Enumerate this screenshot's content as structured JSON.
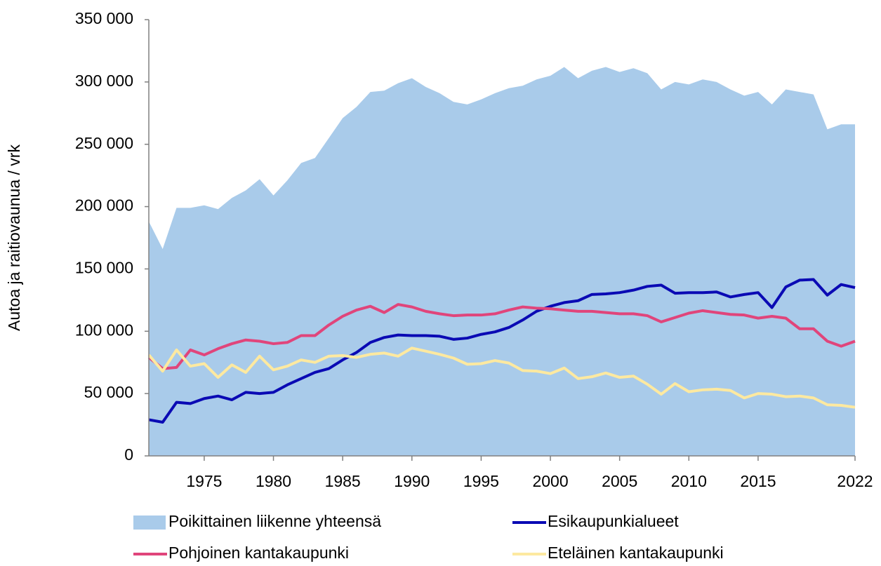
{
  "chart_data": {
    "type": "line",
    "ylabel": "Autoa ja raitiovaunua / vrk",
    "x": [
      1971,
      1972,
      1973,
      1974,
      1975,
      1976,
      1977,
      1978,
      1979,
      1980,
      1981,
      1982,
      1983,
      1984,
      1985,
      1986,
      1987,
      1988,
      1989,
      1990,
      1991,
      1992,
      1993,
      1994,
      1995,
      1996,
      1997,
      1998,
      1999,
      2000,
      2001,
      2002,
      2003,
      2004,
      2005,
      2006,
      2007,
      2008,
      2009,
      2010,
      2011,
      2012,
      2013,
      2014,
      2015,
      2016,
      2017,
      2018,
      2019,
      2020,
      2021,
      2022
    ],
    "series": [
      {
        "name": "Poikittainen liikenne yhteensä",
        "color": "#a9cbea",
        "style": "area",
        "values": [
          188000,
          166000,
          199000,
          199000,
          201000,
          198000,
          207000,
          213000,
          222000,
          209000,
          221000,
          235000,
          239000,
          255000,
          271000,
          280000,
          292000,
          293000,
          299000,
          303000,
          296000,
          291000,
          284000,
          282000,
          286000,
          291000,
          295000,
          297000,
          302000,
          305000,
          312000,
          303000,
          309000,
          312000,
          308000,
          311000,
          307000,
          294000,
          300000,
          298000,
          302000,
          300000,
          294000,
          289000,
          292000,
          282000,
          294000,
          292000,
          290000,
          262000,
          266000,
          266000
        ]
      },
      {
        "name": "Esikaupunkialueet",
        "color": "#0a0ab4",
        "style": "line",
        "values": [
          29000,
          27000,
          43000,
          42000,
          46000,
          48000,
          45000,
          51000,
          50000,
          51000,
          57000,
          62000,
          67000,
          70000,
          77000,
          83000,
          91000,
          95000,
          97000,
          96500,
          96500,
          96000,
          93500,
          94500,
          97500,
          99500,
          103000,
          109000,
          116000,
          120000,
          123000,
          124500,
          129500,
          130000,
          131000,
          133000,
          136000,
          137000,
          130500,
          131000,
          131000,
          131500,
          127500,
          129500,
          131000,
          119000,
          135500,
          141000,
          141500,
          129000,
          137500,
          135000
        ]
      },
      {
        "name": "Pohjoinen kantakaupunki",
        "color": "#e0457b",
        "style": "line",
        "values": [
          79000,
          70000,
          71000,
          85000,
          81000,
          86000,
          90000,
          93000,
          92000,
          90000,
          91000,
          96500,
          96500,
          105000,
          112000,
          117000,
          120000,
          115000,
          121500,
          119500,
          116000,
          114000,
          112500,
          113000,
          113000,
          114000,
          117000,
          119500,
          118500,
          118000,
          117000,
          116000,
          116000,
          115000,
          114000,
          114000,
          112500,
          107500,
          111000,
          114500,
          116500,
          115000,
          113500,
          113000,
          110500,
          112000,
          110500,
          102000,
          102000,
          92000,
          88000,
          92000
        ]
      },
      {
        "name": "Eteläinen kantakaupunki",
        "color": "#fde9a0",
        "style": "line",
        "values": [
          81000,
          68000,
          85000,
          72000,
          74000,
          63000,
          73000,
          67000,
          80000,
          69000,
          72000,
          77000,
          75000,
          80000,
          80500,
          79000,
          81500,
          82500,
          80000,
          86500,
          84000,
          81500,
          78500,
          73500,
          74000,
          76500,
          74500,
          68500,
          68000,
          66000,
          70500,
          62000,
          63500,
          66500,
          63000,
          64000,
          57500,
          49500,
          58000,
          51500,
          53000,
          53500,
          52500,
          46500,
          50000,
          49500,
          47500,
          48000,
          46500,
          41000,
          40500,
          39000
        ]
      }
    ],
    "xlim": [
      1971,
      2022
    ],
    "xticks": [
      1975,
      1980,
      1985,
      1990,
      1995,
      2000,
      2005,
      2010,
      2015,
      2022
    ],
    "ylim": [
      0,
      350000
    ],
    "yticks": [
      {
        "value": 0,
        "label": "0"
      },
      {
        "value": 50000,
        "label": "50 000"
      },
      {
        "value": 100000,
        "label": "100 000"
      },
      {
        "value": 150000,
        "label": "150 000"
      },
      {
        "value": 200000,
        "label": "200 000"
      },
      {
        "value": 250000,
        "label": "250 000"
      },
      {
        "value": 300000,
        "label": "300 000"
      },
      {
        "value": 350000,
        "label": "350 000"
      }
    ],
    "grid": false,
    "legend": "bottom"
  }
}
